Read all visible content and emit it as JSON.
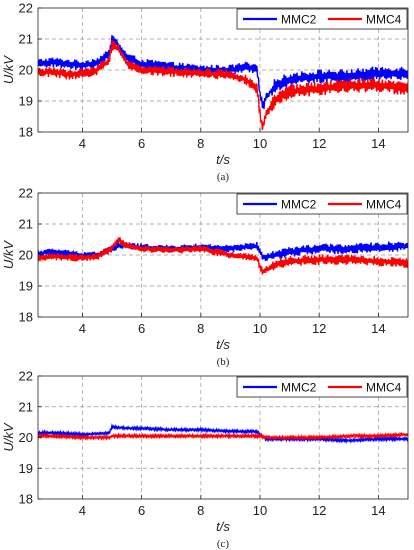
{
  "chart_data": [
    {
      "type": "line",
      "caption": "(a)",
      "xlabel": "t/s",
      "ylabel": "U/kV",
      "xlim": [
        2.5,
        15
      ],
      "ylim": [
        18,
        22
      ],
      "xticks": [
        4,
        6,
        8,
        10,
        12,
        14
      ],
      "yticks": [
        18,
        19,
        20,
        21,
        22
      ],
      "grid": true,
      "legend_position": "top-right",
      "series": [
        {
          "name": "MMC2",
          "color": "#0000ff",
          "x": [
            2.5,
            3.0,
            3.5,
            4.0,
            4.5,
            4.9,
            5.0,
            5.2,
            5.5,
            6.0,
            7.0,
            8.0,
            9.0,
            9.5,
            9.9,
            10.0,
            10.1,
            10.2,
            10.5,
            11.0,
            12.0,
            13.0,
            14.0,
            15.0
          ],
          "y": [
            20.2,
            20.25,
            20.2,
            20.15,
            20.25,
            20.5,
            21.0,
            20.8,
            20.4,
            20.2,
            20.1,
            20.0,
            20.0,
            20.1,
            20.0,
            19.2,
            18.8,
            19.1,
            19.5,
            19.7,
            19.8,
            19.8,
            19.9,
            19.9
          ]
        },
        {
          "name": "MMC4",
          "color": "#ff0000",
          "x": [
            2.5,
            3.0,
            3.5,
            4.0,
            4.5,
            4.9,
            5.0,
            5.2,
            5.5,
            6.0,
            7.0,
            8.0,
            9.0,
            9.5,
            9.9,
            10.0,
            10.1,
            10.2,
            10.5,
            11.0,
            12.0,
            13.0,
            14.0,
            15.0
          ],
          "y": [
            19.9,
            19.95,
            19.85,
            19.9,
            20.0,
            20.3,
            20.8,
            20.7,
            20.2,
            20.0,
            19.95,
            19.9,
            19.85,
            19.7,
            19.4,
            18.6,
            18.1,
            18.6,
            19.0,
            19.3,
            19.4,
            19.5,
            19.5,
            19.4
          ]
        }
      ]
    },
    {
      "type": "line",
      "caption": "(b)",
      "xlabel": "t/s",
      "ylabel": "U/kV",
      "xlim": [
        2.5,
        15
      ],
      "ylim": [
        18,
        22
      ],
      "xticks": [
        4,
        6,
        8,
        10,
        12,
        14
      ],
      "yticks": [
        18,
        19,
        20,
        21,
        22
      ],
      "grid": true,
      "legend_position": "top-right",
      "series": [
        {
          "name": "MMC2",
          "color": "#0000ff",
          "x": [
            2.5,
            3.0,
            4.0,
            4.5,
            5.0,
            5.2,
            5.5,
            6.0,
            7.0,
            8.0,
            9.0,
            9.9,
            10.0,
            10.1,
            10.5,
            11.0,
            12.0,
            13.0,
            14.0,
            15.0
          ],
          "y": [
            20.05,
            20.1,
            20.0,
            20.0,
            20.2,
            20.3,
            20.3,
            20.25,
            20.2,
            20.25,
            20.2,
            20.3,
            20.1,
            19.9,
            20.0,
            20.1,
            20.2,
            20.2,
            20.25,
            20.3
          ]
        },
        {
          "name": "MMC4",
          "color": "#ff0000",
          "x": [
            2.5,
            3.0,
            4.0,
            4.5,
            5.0,
            5.2,
            5.5,
            6.0,
            7.0,
            8.0,
            9.0,
            9.9,
            10.0,
            10.1,
            10.5,
            11.0,
            12.0,
            13.0,
            14.0,
            15.0
          ],
          "y": [
            19.9,
            19.95,
            19.9,
            19.95,
            20.2,
            20.5,
            20.3,
            20.2,
            20.15,
            20.2,
            20.0,
            19.9,
            19.6,
            19.45,
            19.7,
            19.8,
            19.85,
            19.85,
            19.8,
            19.75
          ]
        }
      ]
    },
    {
      "type": "line",
      "caption": "(c)",
      "xlabel": "t/s",
      "ylabel": "U/kV",
      "xlim": [
        2.5,
        15
      ],
      "ylim": [
        18,
        22
      ],
      "xticks": [
        4,
        6,
        8,
        10,
        12,
        14
      ],
      "yticks": [
        18,
        19,
        20,
        21,
        22
      ],
      "grid": true,
      "legend_position": "top-right",
      "series": [
        {
          "name": "MMC2",
          "color": "#0000ff",
          "x": [
            2.5,
            3.0,
            4.0,
            4.9,
            5.0,
            5.5,
            6.0,
            7.0,
            8.0,
            9.0,
            9.9,
            10.0,
            10.2,
            11.0,
            12.0,
            13.0,
            14.0,
            15.0
          ],
          "y": [
            20.15,
            20.15,
            20.1,
            20.15,
            20.35,
            20.3,
            20.3,
            20.25,
            20.25,
            20.2,
            20.2,
            20.1,
            19.95,
            19.95,
            19.95,
            19.9,
            19.95,
            19.95
          ]
        },
        {
          "name": "MMC4",
          "color": "#ff0000",
          "x": [
            2.5,
            3.0,
            4.0,
            4.9,
            5.0,
            5.5,
            6.0,
            7.0,
            8.0,
            9.0,
            9.9,
            10.0,
            10.2,
            11.0,
            12.0,
            13.0,
            14.0,
            15.0
          ],
          "y": [
            20.05,
            20.05,
            20.0,
            20.0,
            20.05,
            20.05,
            20.05,
            20.05,
            20.05,
            20.05,
            20.05,
            20.05,
            20.0,
            20.0,
            20.0,
            20.05,
            20.05,
            20.1
          ]
        }
      ]
    }
  ]
}
